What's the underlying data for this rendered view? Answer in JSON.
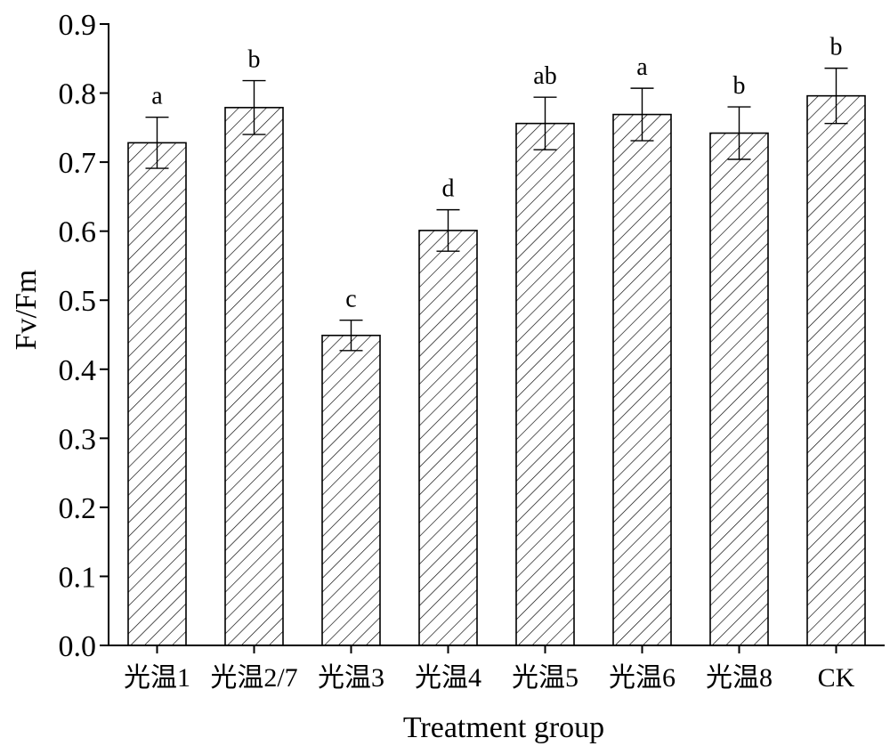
{
  "chart_data": {
    "type": "bar",
    "xlabel": "Treatment group",
    "ylabel": "Fv/Fm",
    "ylim": [
      0.0,
      0.9
    ],
    "yticks": [
      "0.0",
      "0.1",
      "0.2",
      "0.3",
      "0.4",
      "0.5",
      "0.6",
      "0.7",
      "0.8",
      "0.9"
    ],
    "categories": [
      "光温1",
      "光温2/7",
      "光温3",
      "光温4",
      "光温5",
      "光温6",
      "光温8",
      "CK"
    ],
    "values": [
      0.728,
      0.779,
      0.449,
      0.601,
      0.756,
      0.769,
      0.742,
      0.796
    ],
    "errors": [
      0.037,
      0.039,
      0.022,
      0.03,
      0.038,
      0.038,
      0.038,
      0.04
    ],
    "significance": [
      "a",
      "b",
      "c",
      "d",
      "ab",
      "a",
      "b",
      "b"
    ],
    "bar_fill": "hatched",
    "bar_color": "#ffffff",
    "line_color": "#000000",
    "grid": false,
    "legend": "none"
  }
}
